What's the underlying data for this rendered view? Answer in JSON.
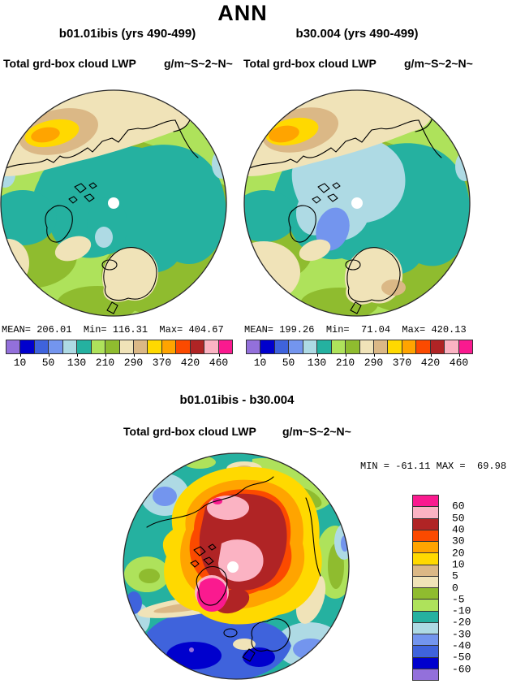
{
  "title": "ANN",
  "panels": {
    "left": {
      "title": "b01.01ibis (yrs 490-499)",
      "var_label": "Total grd-box cloud LWP",
      "units": "g/m~S~2~N~",
      "stats_line": "MEAN= 206.01  Min= 116.31  Max= 404.67"
    },
    "right": {
      "title": "b30.004 (yrs 490-499)",
      "var_label": "Total grd-box cloud LWP",
      "units": "g/m~S~2~N~",
      "stats_line": "MEAN= 199.26  Min=  71.04  Max= 420.13"
    },
    "diff": {
      "title": "b01.01ibis - b30.004",
      "var_label": "Total grd-box cloud LWP",
      "units": "g/m~S~2~N~",
      "minmax_line": "MIN = -61.11 MAX =  69.98"
    }
  },
  "colorbar": {
    "palette": [
      "#9370DB",
      "#0000CD",
      "#3F63DC",
      "#7395EE",
      "#AEDAE4",
      "#25B1A0",
      "#AEE25B",
      "#8FBC2F",
      "#F0E3B8",
      "#DBB886",
      "#FFD900",
      "#FFA400",
      "#FB4A00",
      "#B02425",
      "#FBB3C3",
      "#FA1A8F"
    ],
    "h_tick_labels": [
      "10",
      "50",
      "130",
      "210",
      "290",
      "370",
      "420",
      "460"
    ],
    "v_tick_labels": [
      "60",
      "50",
      "40",
      "30",
      "20",
      "10",
      "5",
      "0",
      "-5",
      "-10",
      "-20",
      "-30",
      "-40",
      "-50",
      "-60"
    ]
  },
  "chart_data": [
    {
      "type": "heatmap",
      "subtype": "north-polar-stereographic-contour-map",
      "title": "b01.01ibis (yrs 490-499)",
      "variable": "Total grd-box cloud LWP",
      "units": "g/m~S~2~N~",
      "stats": {
        "mean": 206.01,
        "min": 116.31,
        "max": 404.67
      },
      "labeled_levels": [
        10,
        50,
        130,
        210,
        290,
        370,
        420,
        460
      ],
      "n_colors": 16,
      "legend_position": "bottom"
    },
    {
      "type": "heatmap",
      "subtype": "north-polar-stereographic-contour-map",
      "title": "b30.004 (yrs 490-499)",
      "variable": "Total grd-box cloud LWP",
      "units": "g/m~S~2~N~",
      "stats": {
        "mean": 199.26,
        "min": 71.04,
        "max": 420.13
      },
      "labeled_levels": [
        10,
        50,
        130,
        210,
        290,
        370,
        420,
        460
      ],
      "n_colors": 16,
      "legend_position": "bottom"
    },
    {
      "type": "heatmap",
      "subtype": "north-polar-stereographic-contour-map",
      "title": "b01.01ibis - b30.004",
      "variable": "Total grd-box cloud LWP",
      "units": "g/m~S~2~N~",
      "stats": {
        "min": -61.11,
        "max": 69.98
      },
      "labeled_levels": [
        60,
        50,
        40,
        30,
        20,
        10,
        5,
        0,
        -5,
        -10,
        -20,
        -30,
        -40,
        -50,
        -60
      ],
      "n_colors": 16,
      "legend_position": "right"
    }
  ]
}
